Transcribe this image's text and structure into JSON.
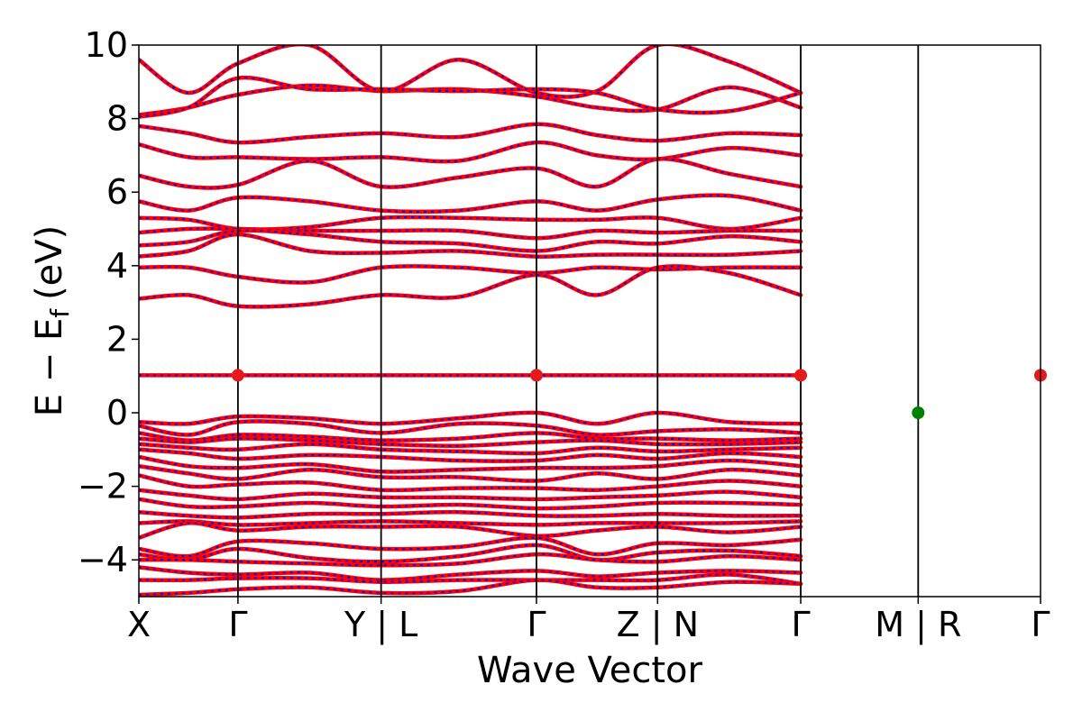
{
  "chart_data": {
    "type": "line",
    "title": "",
    "xlabel": "Wave Vector",
    "ylabel_main": "E − E",
    "ylabel_sub": "f",
    "ylabel_unit": "(eV)",
    "ylim": [
      -5,
      10
    ],
    "yticks": [
      -4,
      -2,
      0,
      2,
      4,
      6,
      8,
      10
    ],
    "ytick_labels": [
      "−4",
      "−2",
      "0",
      "2",
      "4",
      "6",
      "8",
      "10"
    ],
    "xlim": [
      0,
      10
    ],
    "kpoints": [
      {
        "x": 0.0,
        "label": "X"
      },
      {
        "x": 0.81,
        "label": "Γ"
      },
      {
        "x": 1.98,
        "label": "Y | L"
      },
      {
        "x": 3.25,
        "label": "Γ"
      },
      {
        "x": 4.24,
        "label": "Z | N"
      },
      {
        "x": 5.41,
        "label": "Γ"
      },
      {
        "x": 6.37,
        "label": "M | R"
      },
      {
        "x": 7.37,
        "label": "Γ"
      }
    ],
    "x_end": 7.37,
    "colors": {
      "bands": "#ff0000",
      "bands_overlay": "#0000ff",
      "cbm": "#e41a1c",
      "vbm": "#008000"
    },
    "series": [
      {
        "y": [
          9.6,
          8.7,
          9.5,
          10.0,
          8.75,
          9.6,
          8.7,
          8.75,
          10.0,
          9.55,
          8.7
        ]
      },
      {
        "y": [
          8.1,
          8.3,
          8.65,
          8.9,
          8.75,
          8.8,
          8.6,
          8.3,
          8.25,
          8.85,
          8.3
        ]
      },
      {
        "y": [
          8.05,
          8.3,
          9.1,
          8.8,
          8.8,
          8.75,
          8.8,
          8.7,
          8.25,
          8.2,
          8.7
        ]
      },
      {
        "y": [
          7.8,
          7.6,
          7.35,
          7.5,
          7.6,
          7.5,
          7.85,
          7.55,
          7.4,
          7.6,
          7.55
        ]
      },
      {
        "y": [
          7.3,
          6.95,
          6.95,
          6.9,
          6.95,
          6.85,
          7.35,
          7.0,
          6.9,
          7.2,
          7.0
        ]
      },
      {
        "y": [
          6.45,
          6.15,
          6.2,
          6.85,
          6.15,
          6.4,
          6.65,
          6.15,
          6.9,
          6.5,
          6.15
        ]
      },
      {
        "y": [
          5.75,
          5.5,
          5.85,
          5.75,
          5.5,
          5.5,
          5.75,
          5.5,
          5.8,
          5.9,
          5.5
        ]
      },
      {
        "y": [
          5.3,
          5.25,
          5.0,
          5.05,
          5.3,
          5.3,
          5.25,
          5.25,
          5.3,
          5.0,
          5.3
        ]
      },
      {
        "y": [
          4.9,
          5.0,
          5.0,
          4.95,
          4.95,
          4.95,
          4.75,
          4.95,
          4.9,
          4.95,
          4.95
        ]
      },
      {
        "y": [
          4.55,
          4.65,
          4.95,
          4.85,
          4.65,
          4.6,
          4.4,
          4.65,
          4.6,
          4.8,
          4.65
        ]
      },
      {
        "y": [
          4.25,
          4.4,
          4.85,
          4.4,
          4.35,
          4.4,
          4.25,
          4.3,
          4.3,
          4.3,
          4.4
        ]
      },
      {
        "y": [
          3.95,
          3.95,
          3.7,
          3.55,
          3.95,
          3.95,
          3.8,
          3.95,
          3.9,
          3.95,
          3.95
        ]
      },
      {
        "y": [
          3.1,
          3.2,
          2.9,
          2.95,
          3.2,
          3.15,
          3.75,
          3.2,
          3.95,
          3.8,
          3.2
        ]
      },
      {
        "y": [
          1.02,
          1.02,
          1.02,
          1.02,
          1.02,
          1.02,
          1.02,
          1.02,
          1.02,
          1.02,
          1.02
        ]
      },
      {
        "y": [
          -0.25,
          -0.3,
          -0.1,
          -0.15,
          -0.3,
          -0.15,
          0.0,
          -0.3,
          0.0,
          -0.25,
          -0.3
        ]
      },
      {
        "y": [
          -0.35,
          -0.6,
          -0.25,
          -0.3,
          -0.55,
          -0.3,
          -0.35,
          -0.6,
          -0.5,
          -0.45,
          -0.55
        ]
      },
      {
        "y": [
          -0.55,
          -0.75,
          -0.6,
          -0.65,
          -0.75,
          -0.7,
          -0.55,
          -0.7,
          -0.7,
          -0.75,
          -0.7
        ]
      },
      {
        "y": [
          -0.7,
          -0.8,
          -0.7,
          -0.75,
          -0.85,
          -0.9,
          -0.8,
          -0.75,
          -0.85,
          -0.85,
          -0.8
        ]
      },
      {
        "y": [
          -0.85,
          -0.95,
          -1.0,
          -0.85,
          -1.0,
          -1.05,
          -1.1,
          -0.95,
          -1.05,
          -1.0,
          -0.95
        ]
      },
      {
        "y": [
          -1.0,
          -1.1,
          -1.25,
          -1.15,
          -1.2,
          -1.3,
          -1.3,
          -1.15,
          -1.25,
          -1.1,
          -1.2
        ]
      },
      {
        "y": [
          -1.2,
          -1.45,
          -1.5,
          -1.4,
          -1.6,
          -1.55,
          -1.5,
          -1.5,
          -1.45,
          -1.3,
          -1.45
        ]
      },
      {
        "y": [
          -1.45,
          -1.65,
          -1.8,
          -1.55,
          -1.75,
          -1.75,
          -1.85,
          -1.65,
          -1.8,
          -1.55,
          -1.7
        ]
      },
      {
        "y": [
          -1.7,
          -2.0,
          -1.95,
          -1.9,
          -2.1,
          -2.05,
          -2.05,
          -2.1,
          -2.0,
          -1.85,
          -2.0
        ]
      },
      {
        "y": [
          -2.1,
          -2.25,
          -2.35,
          -2.2,
          -2.3,
          -2.3,
          -2.35,
          -2.3,
          -2.25,
          -2.15,
          -2.3
        ]
      },
      {
        "y": [
          -2.35,
          -2.55,
          -2.55,
          -2.45,
          -2.55,
          -2.5,
          -2.6,
          -2.55,
          -2.45,
          -2.45,
          -2.5
        ]
      },
      {
        "y": [
          -2.7,
          -2.8,
          -2.85,
          -2.75,
          -2.75,
          -2.7,
          -2.8,
          -2.8,
          -2.75,
          -2.8,
          -2.8
        ]
      },
      {
        "y": [
          -3.0,
          -2.95,
          -3.05,
          -3.0,
          -2.95,
          -3.0,
          -3.05,
          -3.0,
          -3.0,
          -3.0,
          -2.95
        ]
      },
      {
        "y": [
          -3.4,
          -3.0,
          -3.2,
          -3.1,
          -3.1,
          -3.1,
          -3.35,
          -3.2,
          -3.1,
          -3.25,
          -3.1
        ]
      },
      {
        "y": [
          -3.7,
          -3.9,
          -3.5,
          -3.55,
          -3.7,
          -3.65,
          -3.4,
          -3.85,
          -3.55,
          -3.6,
          -3.45
        ]
      },
      {
        "y": [
          -3.85,
          -4.0,
          -3.7,
          -3.95,
          -4.05,
          -3.9,
          -3.6,
          -4.0,
          -3.8,
          -3.75,
          -3.9
        ]
      },
      {
        "y": [
          -4.0,
          -4.0,
          -4.05,
          -4.1,
          -4.15,
          -4.1,
          -3.85,
          -4.0,
          -4.05,
          -3.9,
          -4.0
        ]
      },
      {
        "y": [
          -4.2,
          -4.35,
          -4.4,
          -4.35,
          -4.55,
          -4.4,
          -4.3,
          -4.45,
          -4.35,
          -4.3,
          -4.35
        ]
      },
      {
        "y": [
          -4.55,
          -4.55,
          -4.5,
          -4.5,
          -4.6,
          -4.55,
          -4.55,
          -4.55,
          -4.55,
          -4.4,
          -4.65
        ]
      },
      {
        "y": [
          -4.95,
          -4.9,
          -4.8,
          -4.75,
          -4.9,
          -4.85,
          -4.55,
          -4.75,
          -4.75,
          -4.6,
          -4.65
        ]
      }
    ],
    "markers": [
      {
        "x": 0.81,
        "y": 1.02,
        "kind": "cbm"
      },
      {
        "x": 3.25,
        "y": 1.02,
        "kind": "cbm"
      },
      {
        "x": 5.41,
        "y": 1.02,
        "kind": "cbm"
      },
      {
        "x": 7.37,
        "y": 1.02,
        "kind": "cbm"
      },
      {
        "x": 6.37,
        "y": 0.0,
        "kind": "vbm"
      }
    ]
  }
}
